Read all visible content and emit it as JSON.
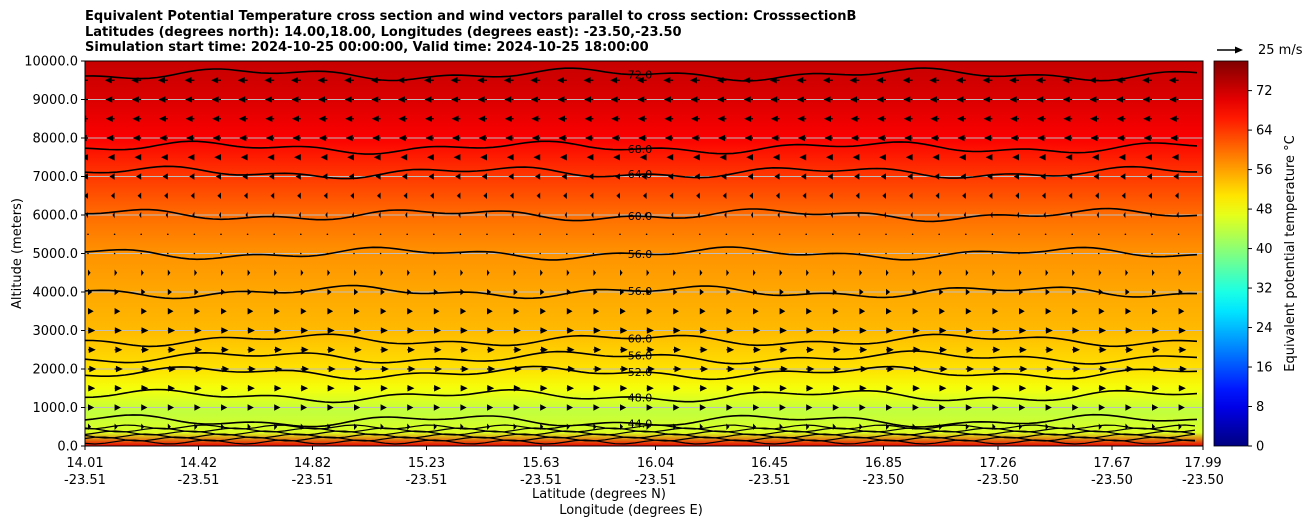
{
  "titles": [
    "Equivalent Potential Temperature cross section and wind vectors parallel to cross section: CrosssectionB",
    "Latitudes (degrees north): 14.00,18.00, Longitudes (degrees east): -23.50,-23.50",
    "Simulation start time: 2024-10-25 00:00:00, Valid time: 2024-10-25 18:00:00"
  ],
  "reference_arrow_label": "25 m/s",
  "chart_data": {
    "type": "filled-contour",
    "title": "Equivalent Potential Temperature cross section and wind vectors parallel to cross section: CrosssectionB",
    "ylabel": "Altitude (meters)",
    "xlabel_lines": [
      "Latitude (degrees N)",
      "Longitude (degrees E)"
    ],
    "ylim": [
      0,
      10000
    ],
    "y_ticks": [
      "0.0",
      "1000.0",
      "2000.0",
      "3000.0",
      "4000.0",
      "5000.0",
      "6000.0",
      "7000.0",
      "8000.0",
      "9000.0",
      "10000.0"
    ],
    "x_ticks": [
      {
        "lat": "14.01",
        "lon": "-23.51"
      },
      {
        "lat": "14.42",
        "lon": "-23.51"
      },
      {
        "lat": "14.82",
        "lon": "-23.51"
      },
      {
        "lat": "15.23",
        "lon": "-23.51"
      },
      {
        "lat": "15.63",
        "lon": "-23.51"
      },
      {
        "lat": "16.04",
        "lon": "-23.51"
      },
      {
        "lat": "16.45",
        "lon": "-23.51"
      },
      {
        "lat": "16.85",
        "lon": "-23.50"
      },
      {
        "lat": "17.26",
        "lon": "-23.50"
      },
      {
        "lat": "17.67",
        "lon": "-23.50"
      },
      {
        "lat": "17.99",
        "lon": "-23.50"
      }
    ],
    "colorbar": {
      "label": "Equivalent potential temperature °C",
      "ticks": [
        "0",
        "8",
        "16",
        "24",
        "32",
        "40",
        "48",
        "56",
        "64",
        "72"
      ],
      "range": [
        0,
        78
      ],
      "colormap": "jet"
    },
    "contour_levels": [
      {
        "label": "72.0",
        "altitude_m": 9650
      },
      {
        "label": "68.0",
        "altitude_m": 7750
      },
      {
        "label": "64.0",
        "altitude_m": 7100
      },
      {
        "label": "60.0",
        "altitude_m": 6000
      },
      {
        "label": "56.0",
        "altitude_m": 5000
      },
      {
        "label": "56.0",
        "altitude_m": 4000
      },
      {
        "label": "60.0",
        "altitude_m": 2750
      },
      {
        "label": "56.0",
        "altitude_m": 2300
      },
      {
        "label": "52.0",
        "altitude_m": 1900
      },
      {
        "label": "48.0",
        "altitude_m": 1300
      },
      {
        "label": "44.0",
        "altitude_m": 650
      }
    ],
    "theta_e_profile": [
      {
        "altitude_m": 0,
        "value": 70
      },
      {
        "altitude_m": 350,
        "value": 46
      },
      {
        "altitude_m": 900,
        "value": 44
      },
      {
        "altitude_m": 1500,
        "value": 48
      },
      {
        "altitude_m": 2000,
        "value": 51
      },
      {
        "altitude_m": 3000,
        "value": 54
      },
      {
        "altitude_m": 4000,
        "value": 55.5
      },
      {
        "altitude_m": 5000,
        "value": 57
      },
      {
        "altitude_m": 6000,
        "value": 60
      },
      {
        "altitude_m": 7000,
        "value": 64
      },
      {
        "altitude_m": 8000,
        "value": 68.5
      },
      {
        "altitude_m": 9000,
        "value": 71
      },
      {
        "altitude_m": 10000,
        "value": 72.5
      }
    ],
    "wind_profile": [
      {
        "altitude_m": 8000,
        "u_ms": -8
      },
      {
        "altitude_m": 9000,
        "u_ms": -9
      },
      {
        "altitude_m": 10000,
        "u_ms": -10
      },
      {
        "altitude_m": 3000,
        "u_ms": 7
      },
      {
        "altitude_m": 2000,
        "u_ms": 8
      },
      {
        "altitude_m": 1000,
        "u_ms": 6
      }
    ]
  }
}
